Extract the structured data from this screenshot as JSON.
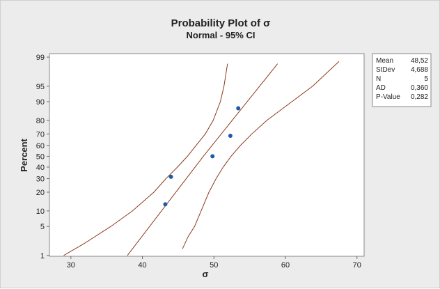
{
  "chart_data": {
    "type": "scatter",
    "title": "Probability Plot of σ",
    "subtitle": "Normal - 95% CI",
    "xlabel": "σ",
    "ylabel": "Percent",
    "x_ticks": [
      "30",
      "40",
      "50",
      "60",
      "70"
    ],
    "y_ticks": [
      "1",
      "5",
      "10",
      "20",
      "30",
      "40",
      "50",
      "60",
      "70",
      "80",
      "90",
      "95",
      "99"
    ],
    "xlim": [
      27,
      71
    ],
    "y_scale": "normal-probability",
    "ylim_percent": [
      1,
      99
    ],
    "grid": false,
    "points": [
      {
        "x": 43.2,
        "y": 13
      },
      {
        "x": 44.0,
        "y": 31.5
      },
      {
        "x": 49.8,
        "y": 50
      },
      {
        "x": 52.3,
        "y": 68.5
      },
      {
        "x": 53.4,
        "y": 87
      }
    ],
    "fit": {
      "mean": 48.52,
      "sd": 4.688
    },
    "ci_level": 0.95,
    "ci_lower": [
      {
        "x": 29.0,
        "y": 1
      },
      {
        "x": 31.8,
        "y": 2
      },
      {
        "x": 35.6,
        "y": 5
      },
      {
        "x": 38.6,
        "y": 10
      },
      {
        "x": 41.6,
        "y": 20
      },
      {
        "x": 43.3,
        "y": 30
      },
      {
        "x": 44.9,
        "y": 40
      },
      {
        "x": 46.3,
        "y": 50
      },
      {
        "x": 47.5,
        "y": 60
      },
      {
        "x": 48.8,
        "y": 70
      },
      {
        "x": 49.9,
        "y": 80
      },
      {
        "x": 50.9,
        "y": 90
      },
      {
        "x": 51.4,
        "y": 95
      },
      {
        "x": 51.9,
        "y": 98.5
      }
    ],
    "ci_upper": [
      {
        "x": 45.6,
        "y": 1.5
      },
      {
        "x": 46.4,
        "y": 3
      },
      {
        "x": 47.3,
        "y": 5
      },
      {
        "x": 48.2,
        "y": 10
      },
      {
        "x": 49.3,
        "y": 20
      },
      {
        "x": 50.3,
        "y": 30
      },
      {
        "x": 51.3,
        "y": 40
      },
      {
        "x": 52.4,
        "y": 50
      },
      {
        "x": 53.7,
        "y": 60
      },
      {
        "x": 55.3,
        "y": 70
      },
      {
        "x": 57.4,
        "y": 80
      },
      {
        "x": 60.9,
        "y": 90
      },
      {
        "x": 63.8,
        "y": 95
      },
      {
        "x": 67.5,
        "y": 98.7
      }
    ],
    "fit_line": [
      {
        "x": 37.9,
        "y": 1
      },
      {
        "x": 48.52,
        "y": 50
      },
      {
        "x": 58.9,
        "y": 98.5
      }
    ],
    "colors": {
      "points": "#1f5aa6",
      "lines": "#8b3a1a",
      "plot_bg": "#ffffff",
      "frame_bg": "#ececec"
    },
    "stats": [
      {
        "label": "Mean",
        "value": "48,52"
      },
      {
        "label": "StDev",
        "value": "4,688"
      },
      {
        "label": "N",
        "value": "5"
      },
      {
        "label": "AD",
        "value": "0,360"
      },
      {
        "label": "P-Value",
        "value": "0,282"
      }
    ]
  }
}
